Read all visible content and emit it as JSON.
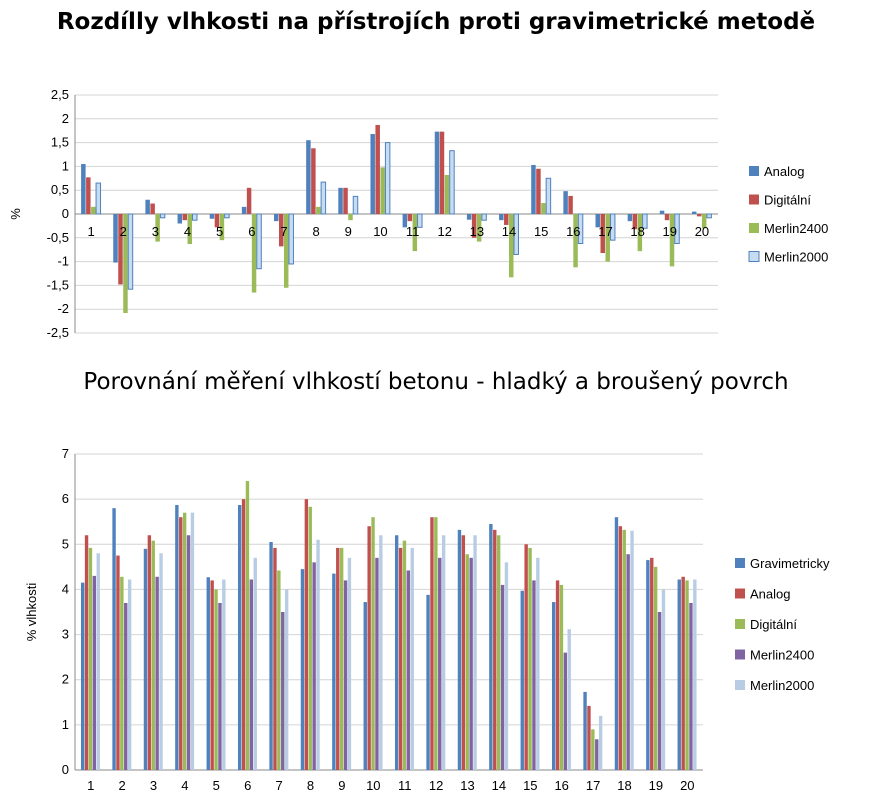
{
  "chart_data": [
    {
      "type": "bar",
      "title": "Rozdílly vlhkosti na přístrojích proti gravimetrické metodě",
      "xlabel": "",
      "ylabel": "%",
      "ylim": [
        -2.5,
        2.5
      ],
      "yticks": [
        "2,5",
        "2",
        "1,5",
        "1",
        "0,5",
        "0",
        "-0,5",
        "-1",
        "-1,5",
        "-2",
        "-2,5"
      ],
      "categories": [
        "1",
        "2",
        "3",
        "4",
        "5",
        "6",
        "7",
        "8",
        "9",
        "10",
        "11",
        "12",
        "13",
        "14",
        "15",
        "16",
        "17",
        "18",
        "19",
        "20"
      ],
      "series": [
        {
          "name": "Analog",
          "color": "#4f81bd",
          "values": [
            1.05,
            -1.02,
            0.3,
            -0.2,
            -0.1,
            0.15,
            -0.15,
            1.55,
            0.55,
            1.68,
            -0.28,
            1.73,
            -0.12,
            -0.13,
            1.03,
            0.48,
            -0.28,
            -0.15,
            0.07,
            0.05
          ]
        },
        {
          "name": "Digitální",
          "color": "#c0504d",
          "values": [
            0.77,
            -1.48,
            0.22,
            -0.13,
            -0.28,
            0.55,
            -0.68,
            1.38,
            0.55,
            1.87,
            -0.15,
            1.73,
            -0.5,
            -0.23,
            0.95,
            0.38,
            -0.82,
            -0.32,
            -0.13,
            -0.05
          ]
        },
        {
          "name": "Merlin2400",
          "color": "#9bbb59",
          "values": [
            0.15,
            -2.08,
            -0.58,
            -0.63,
            -0.55,
            -1.65,
            -1.55,
            0.15,
            -0.13,
            0.98,
            -0.78,
            0.82,
            -0.58,
            -1.33,
            0.23,
            -1.12,
            -1.0,
            -0.78,
            -1.1,
            -0.3
          ]
        },
        {
          "name": "Merlin2000",
          "color": "#c6dcf2",
          "stroke": "#4f81bd",
          "values": [
            0.65,
            -1.58,
            -0.08,
            -0.13,
            -0.08,
            -1.15,
            -1.05,
            0.67,
            0.37,
            1.5,
            -0.28,
            1.33,
            -0.13,
            -0.85,
            0.75,
            -0.62,
            -0.55,
            -0.3,
            -0.62,
            -0.08
          ]
        }
      ]
    },
    {
      "type": "bar",
      "title": "Porovnání měření vlhkostí betonu - hladký a broušený povrch",
      "xlabel": "",
      "ylabel": "% vlhkosti",
      "ylim": [
        0,
        7
      ],
      "yticks": [
        "7",
        "6",
        "5",
        "4",
        "3",
        "2",
        "1",
        "0"
      ],
      "categories": [
        "1",
        "2",
        "3",
        "4",
        "5",
        "6",
        "7",
        "8",
        "9",
        "10",
        "11",
        "12",
        "13",
        "14",
        "15",
        "16",
        "17",
        "18",
        "19",
        "20"
      ],
      "series": [
        {
          "name": "Gravimetricky",
          "color": "#4f81bd",
          "values": [
            4.15,
            5.8,
            4.9,
            5.87,
            4.27,
            5.87,
            5.05,
            4.45,
            4.35,
            3.72,
            5.2,
            3.88,
            5.32,
            5.45,
            3.97,
            3.72,
            1.73,
            5.6,
            4.65,
            4.22
          ]
        },
        {
          "name": "Analog",
          "color": "#c0504d",
          "values": [
            5.2,
            4.75,
            5.2,
            5.6,
            4.2,
            6.0,
            4.92,
            6.0,
            4.92,
            5.4,
            4.92,
            5.6,
            5.2,
            5.32,
            5.0,
            4.2,
            1.42,
            5.4,
            4.7,
            4.28
          ]
        },
        {
          "name": "Digitální",
          "color": "#9bbb59",
          "values": [
            4.92,
            4.28,
            5.08,
            5.7,
            4.0,
            6.4,
            4.42,
            5.83,
            4.92,
            5.6,
            5.08,
            5.6,
            4.78,
            5.2,
            4.92,
            4.1,
            0.9,
            5.32,
            4.5,
            4.2
          ]
        },
        {
          "name": "Merlin2400",
          "color": "#8064a2",
          "values": [
            4.3,
            3.7,
            4.28,
            5.2,
            3.7,
            4.22,
            3.5,
            4.6,
            4.2,
            4.7,
            4.42,
            4.7,
            4.7,
            4.1,
            4.2,
            2.6,
            0.68,
            4.78,
            3.5,
            3.7
          ]
        },
        {
          "name": "Merlin2000",
          "color": "#b8cce4",
          "values": [
            4.8,
            4.22,
            4.8,
            5.7,
            4.22,
            4.7,
            4.0,
            5.1,
            4.7,
            5.2,
            4.92,
            5.2,
            5.2,
            4.6,
            4.7,
            3.12,
            1.2,
            5.3,
            4.0,
            4.22
          ]
        }
      ]
    }
  ]
}
